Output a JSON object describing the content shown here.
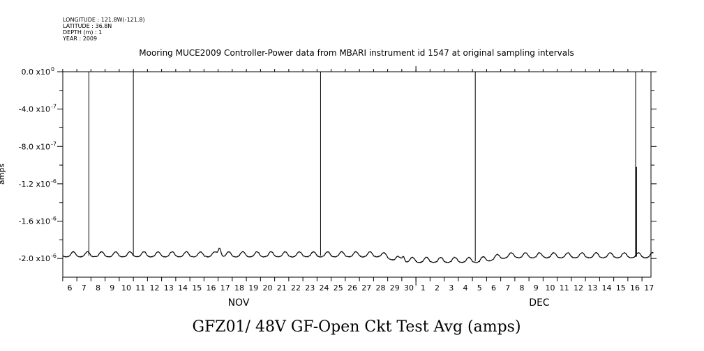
{
  "meta": {
    "longitude": "LONGITUDE : 121.8W(-121.8)",
    "latitude": "LATITUDE : 36.8N",
    "depth": "DEPTH (m) : 1",
    "year": "YEAR : 2009"
  },
  "chart_data": {
    "type": "line",
    "title": "Mooring MUCE2009 Controller-Power data from MBARI instrument id 1547 at original sampling intervals",
    "xlabel": "GFZ01/ 48V GF-Open Ckt Test Avg (amps)",
    "ylabel": "amps",
    "x_ticks": [
      "6",
      "7",
      "8",
      "9",
      "10",
      "11",
      "12",
      "13",
      "14",
      "15",
      "16",
      "17",
      "18",
      "19",
      "20",
      "21",
      "22",
      "23",
      "24",
      "25",
      "26",
      "27",
      "28",
      "29",
      "30",
      "1",
      "2",
      "3",
      "4",
      "5",
      "6",
      "7",
      "8",
      "9",
      "10",
      "11",
      "12",
      "13",
      "14",
      "15",
      "16",
      "17"
    ],
    "months": [
      {
        "label": "NOV",
        "start_day_index": 0
      },
      {
        "label": "DEC",
        "start_day_index": 25
      }
    ],
    "y_ticks": [
      {
        "value": 0.0,
        "mantissa": "0.0 x10",
        "exp": "0"
      },
      {
        "value": -4e-07,
        "mantissa": "-4.0 x10",
        "exp": "-7"
      },
      {
        "value": -8e-07,
        "mantissa": "-8.0 x10",
        "exp": "-7"
      },
      {
        "value": -1.2e-06,
        "mantissa": "-1.2 x10",
        "exp": "-6"
      },
      {
        "value": -1.6e-06,
        "mantissa": "-1.6 x10",
        "exp": "-6"
      },
      {
        "value": -2e-06,
        "mantissa": "-2.0 x10",
        "exp": "-6"
      }
    ],
    "ylim": [
      -2.2e-06,
      0.0
    ],
    "xlim_days": [
      5.5,
      47.3
    ],
    "baseline": -1.97e-06,
    "daily_amplitude": 3.5e-08,
    "segments": [
      {
        "day": 5.5,
        "level": -1.97e-06
      },
      {
        "day": 28.0,
        "level": -1.97e-06
      },
      {
        "day": 29.5,
        "level": -2.03e-06
      },
      {
        "day": 35.0,
        "level": -2.03e-06
      },
      {
        "day": 37.0,
        "level": -1.98e-06
      },
      {
        "day": 47.3,
        "level": -1.98e-06
      }
    ],
    "bumps": [
      {
        "day": 16.6,
        "value": -1.88e-06
      },
      {
        "day": 29.6,
        "value": -1.91e-06
      }
    ],
    "spikes": [
      {
        "day": 7.35,
        "value": 0.0
      },
      {
        "day": 10.5,
        "value": 0.0
      },
      {
        "day": 23.75,
        "value": 0.0
      },
      {
        "day": 34.7,
        "value": 0.0
      },
      {
        "day": 46.05,
        "value": 0.0
      },
      {
        "day": 46.1,
        "value": -1.02e-06
      }
    ],
    "grid": false,
    "legend": "none"
  }
}
